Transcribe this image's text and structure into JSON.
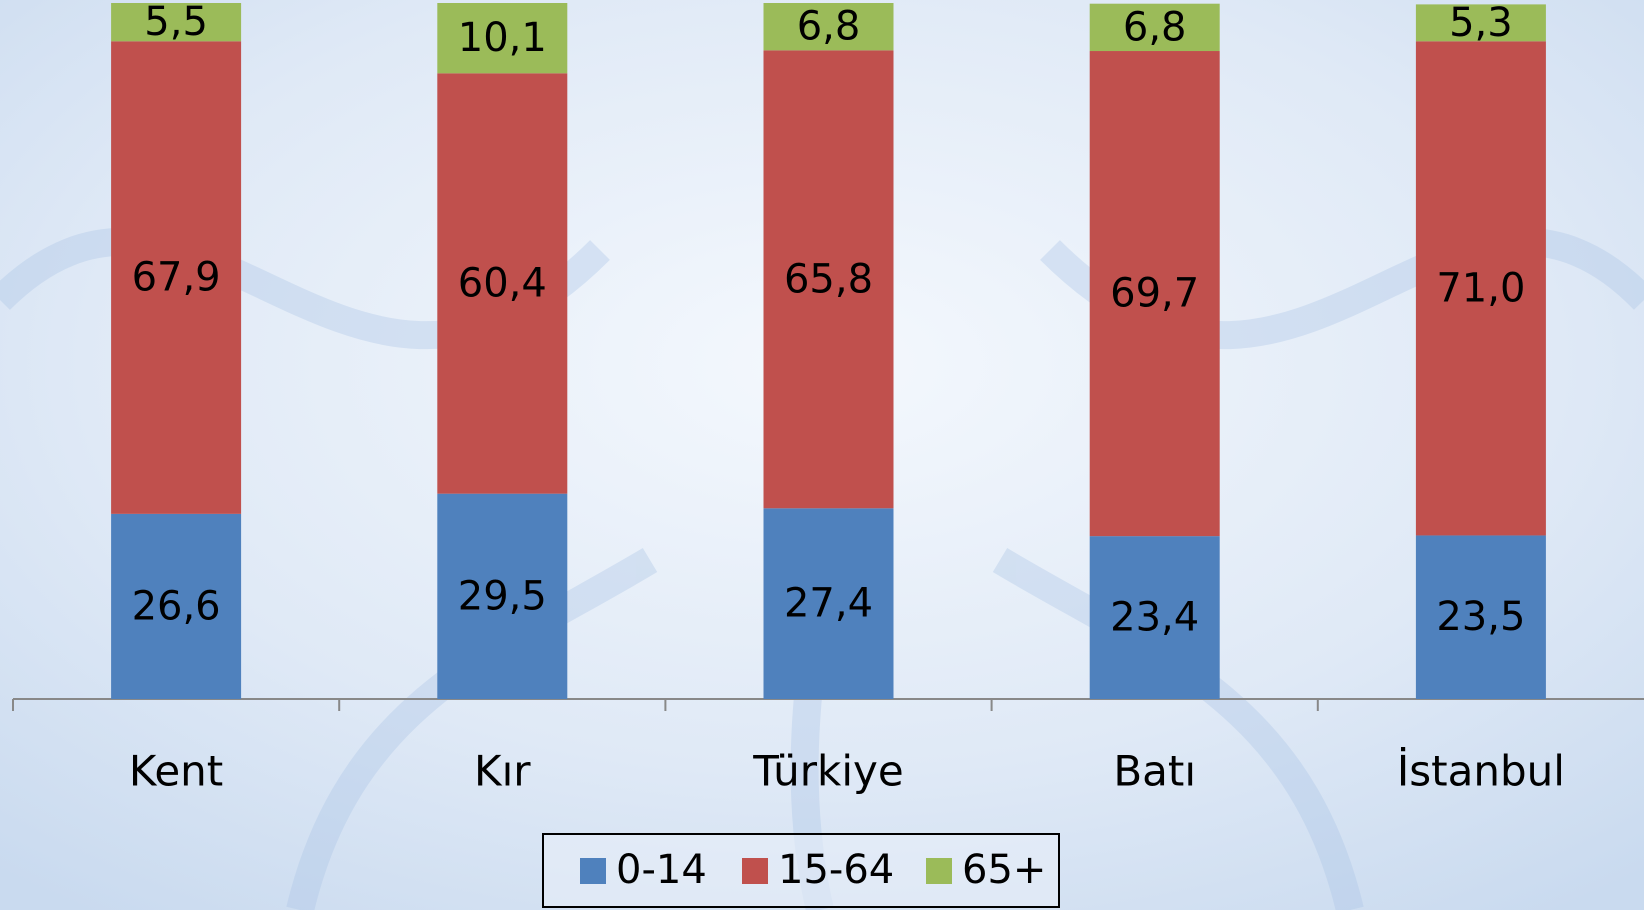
{
  "chart_data": {
    "type": "stacked-bar",
    "categories": [
      "Kent",
      "Kır",
      "Türkiye",
      "Batı",
      "İstanbul"
    ],
    "series": [
      {
        "name": "0-14",
        "color": "#4f81bd",
        "values": [
          26.6,
          29.5,
          27.4,
          23.4,
          23.5
        ],
        "value_labels": [
          "26,6",
          "29,5",
          "27,4",
          "23,4",
          "23,5"
        ]
      },
      {
        "name": "15-64",
        "color": "#c0504d",
        "values": [
          67.9,
          60.4,
          65.8,
          69.7,
          71.0
        ],
        "value_labels": [
          "67,9",
          "60,4",
          "65,8",
          "69,7",
          "71,0"
        ]
      },
      {
        "name": "65+",
        "color": "#9bbb59",
        "values": [
          5.5,
          10.1,
          6.8,
          6.8,
          5.3
        ],
        "value_labels": [
          "5,5",
          "10,1",
          "6,8",
          "6,8",
          "5,3"
        ]
      }
    ],
    "ylim": [
      0,
      100
    ]
  }
}
